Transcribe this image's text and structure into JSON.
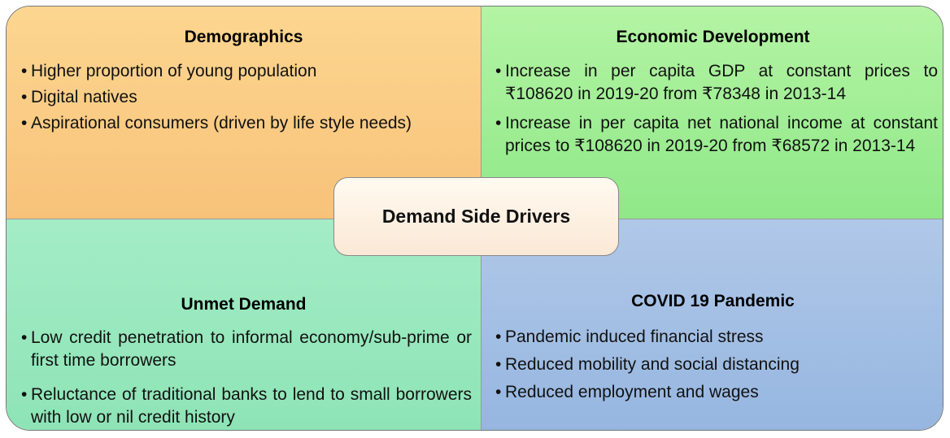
{
  "center": "Demand Side Drivers",
  "quadrants": [
    {
      "title": "Demographics",
      "bullets": [
        "Higher proportion of young population",
        "Digital natives",
        "Aspirational consumers (driven by life style needs)"
      ]
    },
    {
      "title": "Economic Development",
      "bullets": [
        "Increase in per capita GDP at constant prices to ₹108620 in 2019-20 from ₹78348 in 2013-14",
        "Increase in per capita net national income at constant prices to ₹108620 in 2019-20 from ₹68572 in 2013-14"
      ]
    },
    {
      "title": "Unmet Demand",
      "bullets": [
        "Low credit penetration to informal economy/sub-prime or first time borrowers",
        "Reluctance of traditional banks to lend to small borrowers with low or nil credit history"
      ]
    },
    {
      "title": "COVID 19 Pandemic",
      "bullets": [
        "Pandemic induced financial stress",
        "Reduced mobility and social distancing",
        "Reduced employment and wages"
      ]
    }
  ]
}
